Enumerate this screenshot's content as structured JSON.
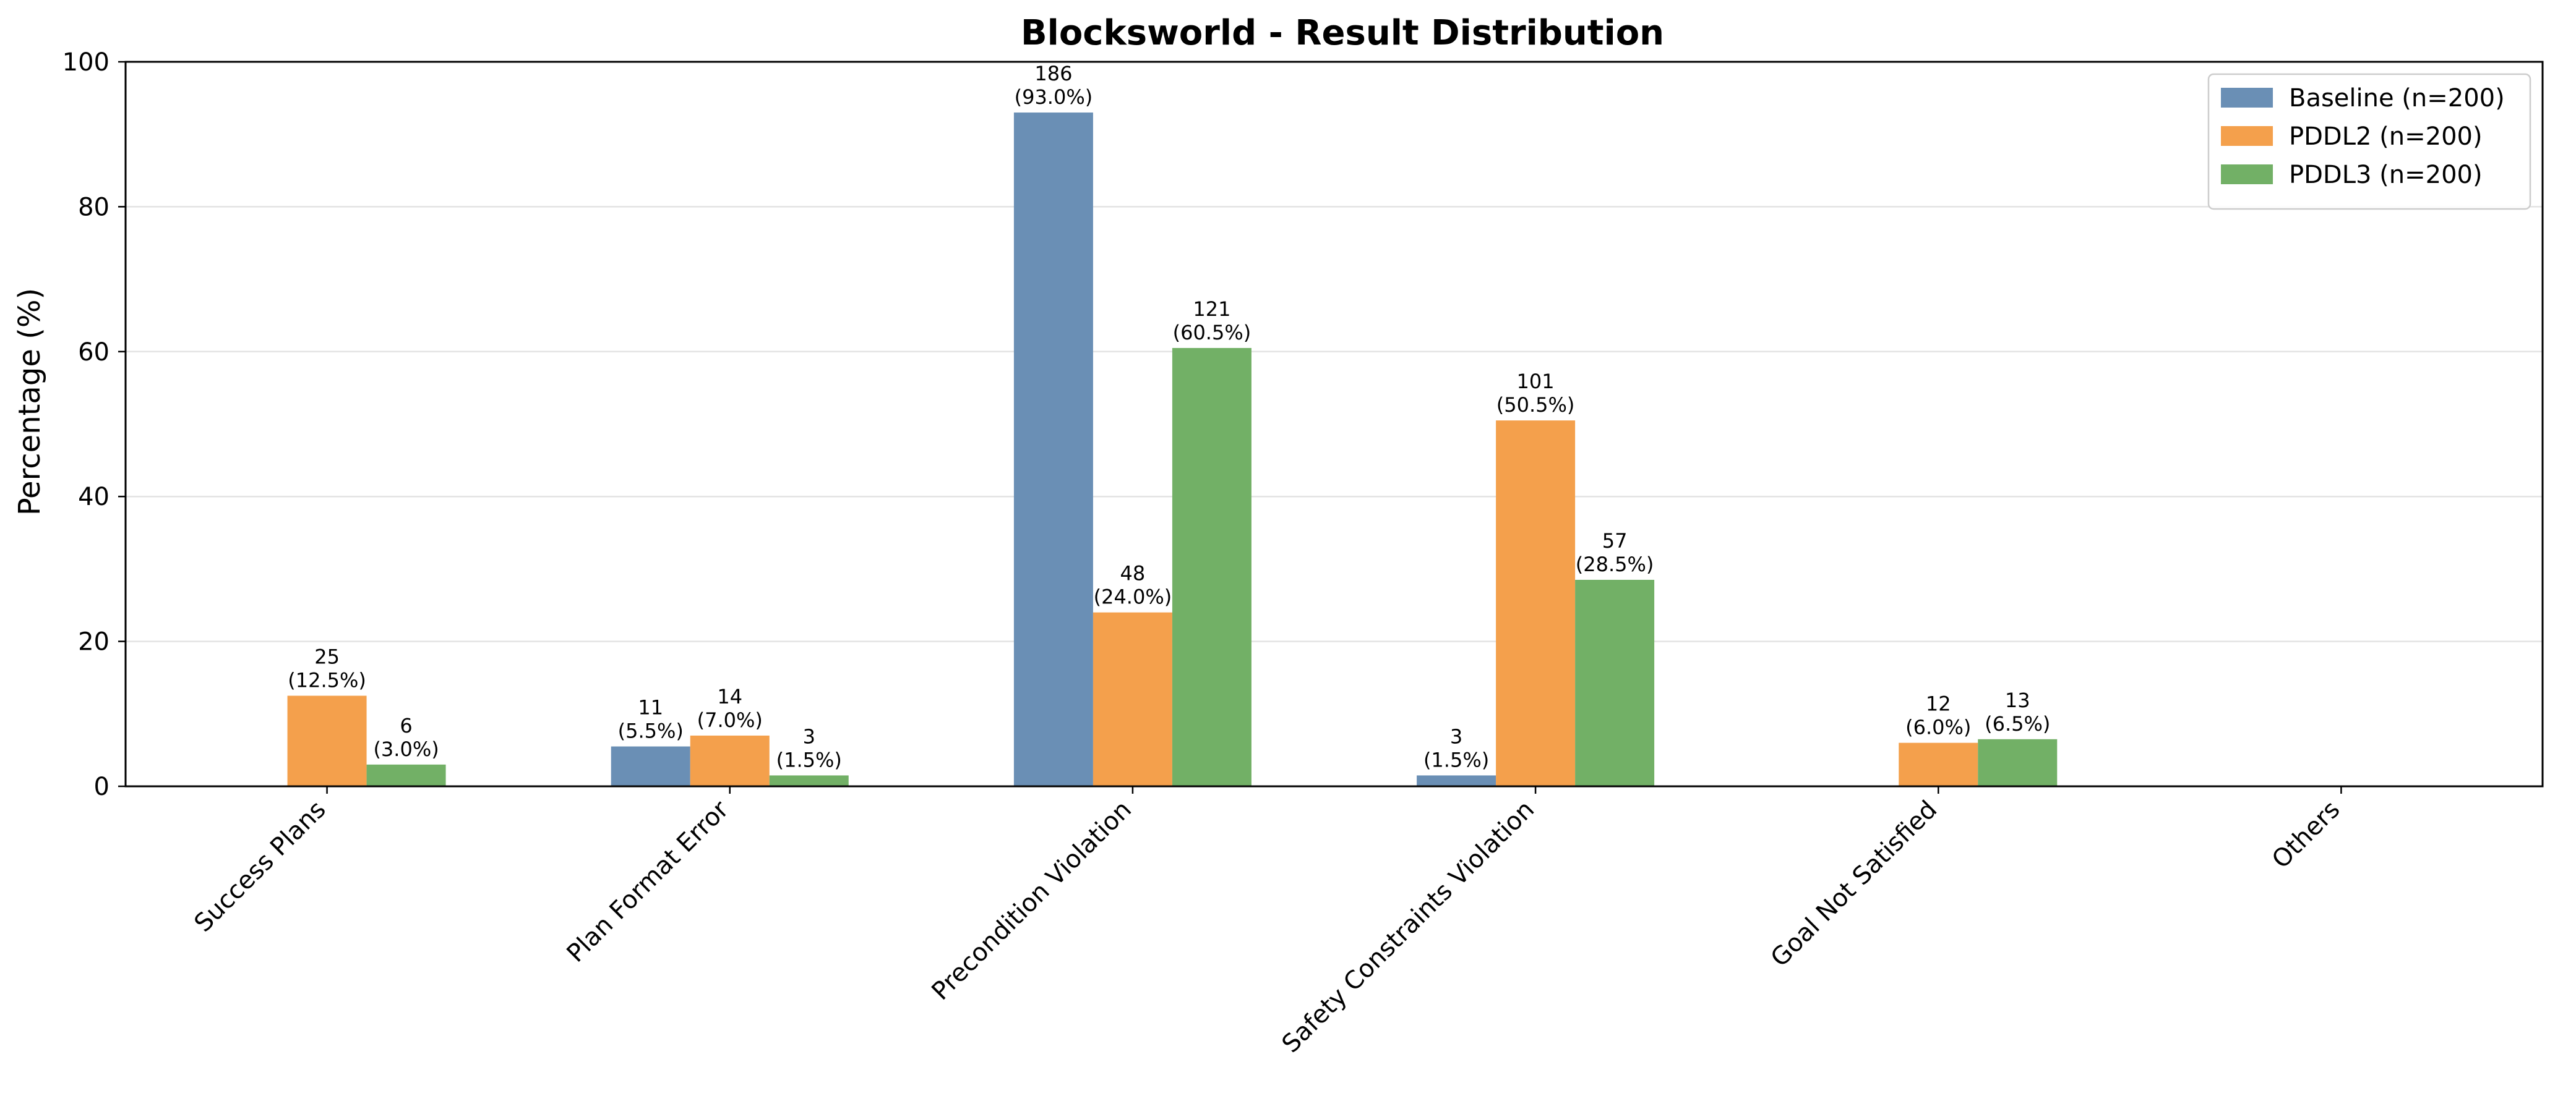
{
  "chart_data": {
    "type": "bar",
    "title": "Blocksworld - Result Distribution",
    "xlabel": "",
    "ylabel": "Percentage (%)",
    "ylim": [
      0,
      100
    ],
    "yticks": [
      "0",
      "20",
      "40",
      "60",
      "80",
      "100"
    ],
    "grid": "horizontal",
    "legend_position": "top-right",
    "categories": [
      "Success Plans",
      "Plan Format Error",
      "Precondition Violation",
      "Safety Constraints Violation",
      "Goal Not Satisfied",
      "Others"
    ],
    "series": [
      {
        "name": "Baseline (n=200)",
        "color": "#6a8fb5",
        "values": [
          0,
          5.5,
          93.0,
          1.5,
          0,
          0
        ],
        "counts": [
          "",
          "11",
          "186",
          "3",
          "",
          ""
        ],
        "percent_labels": [
          "",
          "(5.5%)",
          "(93.0%)",
          "(1.5%)",
          "",
          ""
        ]
      },
      {
        "name": "PDDL2 (n=200)",
        "color": "#f4a04c",
        "values": [
          12.5,
          7.0,
          24.0,
          50.5,
          6.0,
          0
        ],
        "counts": [
          "25",
          "14",
          "48",
          "101",
          "12",
          ""
        ],
        "percent_labels": [
          "(12.5%)",
          "(7.0%)",
          "(24.0%)",
          "(50.5%)",
          "(6.0%)",
          ""
        ]
      },
      {
        "name": "PDDL3 (n=200)",
        "color": "#72b066",
        "values": [
          3.0,
          1.5,
          60.5,
          28.5,
          6.5,
          0
        ],
        "counts": [
          "6",
          "3",
          "121",
          "57",
          "13",
          ""
        ],
        "percent_labels": [
          "(3.0%)",
          "(1.5%)",
          "(60.5%)",
          "(28.5%)",
          "(6.5%)",
          ""
        ]
      }
    ]
  }
}
